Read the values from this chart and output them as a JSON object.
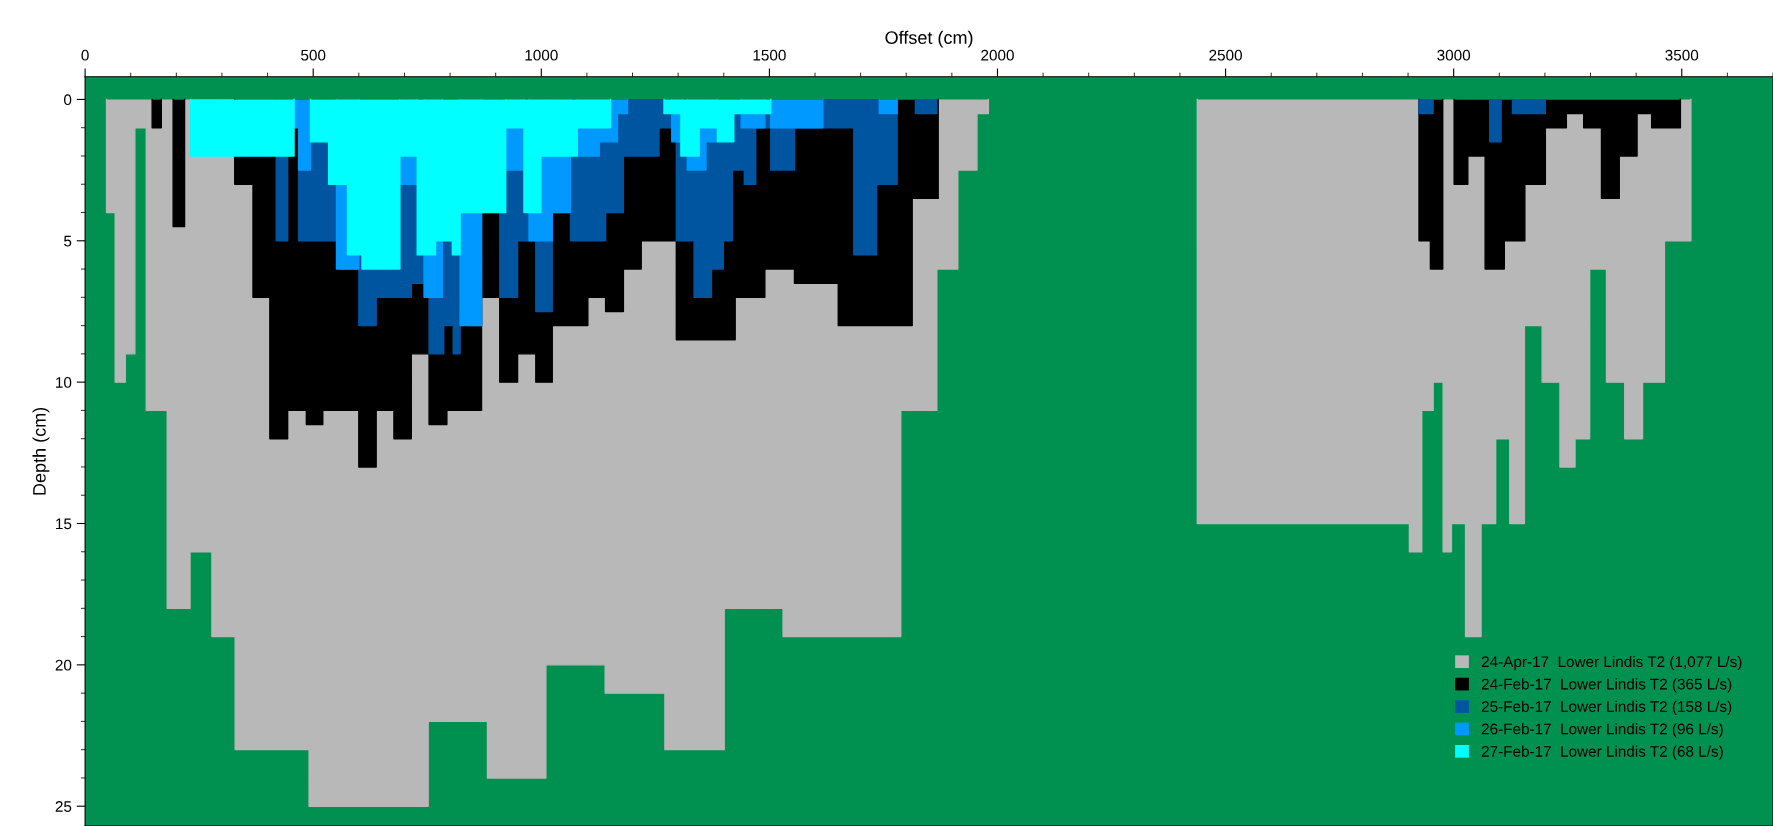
{
  "chart_data": {
    "type": "area",
    "xlabel": "Offset (cm)",
    "ylabel": "Depth (cm)",
    "xlim": [
      0,
      3700
    ],
    "xticks": [
      0,
      500,
      1000,
      1500,
      2000,
      2500,
      3000,
      3500
    ],
    "ylim": [
      25.7,
      -0.8
    ],
    "yticks": [
      0,
      5,
      10,
      15,
      20,
      25
    ],
    "grid": false,
    "legend": "bottom right",
    "series": [
      {
        "name": "24-Apr-17  Lower Lindis T2 (1,077 L/s)",
        "color": "#b8b8b8",
        "x": [
          47,
          47,
          66,
          66,
          88,
          88,
          109,
          109,
          134,
          134,
          180,
          180,
          230,
          230,
          278,
          278,
          329,
          329,
          491,
          491,
          752,
          752,
          882,
          882,
          1010,
          1010,
          1140,
          1140,
          1271,
          1271,
          1401,
          1401,
          1530,
          1530,
          1788,
          1788,
          1867,
          1867,
          1913,
          1913,
          1955,
          1955,
          1980,
          1980,
          2200,
          2438,
          2438,
          2903,
          2903,
          2930,
          2930,
          2955,
          2955,
          2977,
          2977,
          2995,
          2995,
          3026,
          3026,
          3060,
          3060,
          3092,
          3092,
          3123,
          3123,
          3155,
          3155,
          3194,
          3194,
          3233,
          3233,
          3266,
          3266,
          3298,
          3298,
          3335,
          3335,
          3375,
          3375,
          3414,
          3414,
          3462,
          3462,
          3520,
          3520
        ],
        "values": [
          0,
          4,
          4,
          10,
          10,
          9,
          9,
          1,
          1,
          11,
          11,
          18,
          18,
          16,
          16,
          19,
          19,
          23,
          23,
          25,
          25,
          22,
          22,
          24,
          24,
          20,
          20,
          21,
          21,
          23,
          23,
          18,
          18,
          19,
          19,
          11,
          11,
          6,
          6,
          2.5,
          2.5,
          0.5,
          0.5,
          0,
          null,
          0,
          15,
          15,
          16,
          16,
          11,
          11,
          10,
          10,
          16,
          16,
          15,
          15,
          19,
          19,
          15,
          15,
          12,
          12,
          15,
          15,
          8,
          8,
          10,
          10,
          13,
          13,
          12,
          12,
          6,
          6,
          10,
          10,
          12,
          12,
          10,
          10,
          5,
          5,
          0
        ]
      },
      {
        "name": "24-Feb-17  Lower Lindis T2 (365 L/s)",
        "color": "#000000",
        "x": [
          147,
          147,
          167,
          167,
          180,
          193,
          193,
          218,
          218,
          270,
          328,
          328,
          368,
          368,
          405,
          405,
          444,
          444,
          485,
          485,
          521,
          521,
          600,
          600,
          638,
          638,
          677,
          677,
          715,
          715,
          754,
          754,
          793,
          793,
          869,
          869,
          909,
          909,
          948,
          948,
          988,
          988,
          1024,
          1024,
          1102,
          1102,
          1141,
          1141,
          1180,
          1180,
          1219,
          1219,
          1296,
          1296,
          1425,
          1425,
          1490,
          1490,
          1555,
          1555,
          1651,
          1651,
          1813,
          1813,
          1870,
          1870,
          2400,
          2924,
          2924,
          2949,
          2949,
          2976,
          2976,
          2988,
          3001,
          3001,
          3031,
          3031,
          3069,
          3069,
          3111,
          3111,
          3156,
          3156,
          3201,
          3201,
          3247,
          3247,
          3285,
          3285,
          3324,
          3324,
          3363,
          3363,
          3402,
          3402,
          3434,
          3434,
          3497,
          3497
        ],
        "values": [
          0,
          1,
          1,
          0,
          null,
          0,
          4.5,
          4.5,
          0,
          null,
          0,
          3,
          3,
          7,
          7,
          12,
          12,
          11,
          11,
          11.5,
          11.5,
          11,
          11,
          13,
          13,
          11,
          11,
          12,
          12,
          9,
          9,
          11.5,
          11.5,
          11,
          11,
          7,
          7,
          10,
          10,
          9,
          9,
          10,
          10,
          8,
          8,
          7,
          7,
          7.5,
          7.5,
          6,
          6,
          5,
          5,
          8.5,
          8.5,
          7,
          7,
          6,
          6,
          6.5,
          6.5,
          8,
          8,
          3.5,
          3.5,
          0,
          null,
          0,
          5,
          5,
          6,
          6,
          0,
          null,
          0,
          3,
          3,
          2,
          2,
          6,
          6,
          5,
          5,
          3,
          3,
          1,
          1,
          0.5,
          0.5,
          1,
          1,
          3.5,
          3.5,
          2,
          2,
          0.5,
          0.5,
          1,
          1,
          0
        ]
      },
      {
        "name": "25-Feb-17  Lower Lindis T2 (158 L/s)",
        "color": "#0055a0",
        "x": [
          419,
          419,
          444,
          444,
          456,
          468,
          468,
          560,
          560,
          600,
          600,
          638,
          638,
          715,
          715,
          754,
          754,
          786,
          786,
          807,
          807,
          822,
          822,
          841,
          841,
          869,
          869,
          889,
          909,
          909,
          948,
          948,
          988,
          988,
          1024,
          1024,
          1044,
          1064,
          1064,
          1141,
          1141,
          1180,
          1180,
          1258,
          1258,
          1296,
          1296,
          1335,
          1335,
          1373,
          1373,
          1399,
          1399,
          1419,
          1419,
          1445,
          1445,
          1470,
          1470,
          1503,
          1503,
          1555,
          1555,
          1685,
          1685,
          1735,
          1735,
          1780,
          1780,
          1800,
          1820,
          1820,
          1867,
          1867,
          2400,
          2924,
          2924,
          2955,
          2955,
          3000,
          3079,
          3079,
          3104,
          3104,
          3116,
          3129,
          3129,
          3201,
          3201
        ],
        "values": [
          0,
          5,
          5,
          0,
          null,
          0,
          5,
          5,
          6,
          6,
          8,
          8,
          7,
          7,
          6.5,
          6.5,
          9,
          9,
          8,
          8,
          9,
          9,
          7.5,
          7.5,
          8,
          8,
          0,
          null,
          0,
          7,
          7,
          5,
          5,
          7.5,
          7.5,
          0,
          null,
          0,
          5,
          5,
          4,
          4,
          2,
          2,
          1,
          1,
          5,
          5,
          7,
          7,
          6,
          6,
          5,
          5,
          2.5,
          2.5,
          3,
          3,
          1,
          1,
          2.5,
          2.5,
          1,
          1,
          5.5,
          5.5,
          3,
          3,
          0,
          null,
          0,
          0.5,
          0.5,
          0,
          null,
          0,
          0.5,
          0.5,
          0,
          null,
          0,
          1.5,
          1.5,
          0,
          null,
          0,
          0.5,
          0.5,
          0
        ]
      },
      {
        "name": "26-Feb-17  Lower Lindis T2 (96 L/s)",
        "color": "#0099ff",
        "x": [
          458,
          458,
          468,
          468,
          494,
          494,
          520,
          551,
          551,
          600,
          600,
          645,
          690,
          690,
          728,
          728,
          735,
          743,
          743,
          783,
          783,
          800,
          822,
          822,
          869,
          869,
          900,
          922,
          922,
          962,
          962,
          968,
          973,
          973,
          1024,
          1024,
          1064,
          1064,
          1070,
          1079,
          1079,
          1127,
          1127,
          1167,
          1167,
          1189,
          1189,
          1240,
          1286,
          1286,
          1310,
          1310,
          1315,
          1320,
          1320,
          1361,
          1361,
          1386,
          1386,
          1410,
          1438,
          1438,
          1490,
          1490,
          1496,
          1503,
          1503,
          1617,
          1617,
          1680,
          1741,
          1741,
          1780,
          1780
        ],
        "values": [
          0,
          1,
          1,
          2.5,
          2.5,
          0,
          null,
          0,
          6,
          6,
          0,
          null,
          0,
          3,
          3,
          0,
          null,
          0,
          7,
          7,
          0,
          null,
          0,
          8,
          8,
          0,
          null,
          0,
          2.5,
          2.5,
          0,
          null,
          0,
          5,
          5,
          4,
          4,
          0,
          null,
          0,
          2,
          2,
          1.5,
          1.5,
          0.5,
          0.5,
          0,
          null,
          0,
          1.5,
          1.5,
          0,
          null,
          0,
          2.5,
          2.5,
          1.5,
          1.5,
          0,
          null,
          0,
          1,
          1,
          0,
          null,
          0,
          1,
          1,
          0,
          null,
          0,
          0.5,
          0.5,
          0
        ]
      },
      {
        "name": "27-Feb-17  Lower Lindis T2 (68 L/s)",
        "color": "#00ffff",
        "x": [
          231,
          231,
          458,
          458,
          476,
          494,
          494,
          534,
          534,
          575,
          575,
          607,
          607,
          690,
          690,
          728,
          728,
          768,
          768,
          805,
          805,
          822,
          822,
          922,
          922,
          962,
          962,
          999,
          999,
          1079,
          1079,
          1152,
          1152,
          1210,
          1269,
          1269,
          1306,
          1306,
          1346,
          1346,
          1386,
          1386,
          1422,
          1422,
          1503,
          1503
        ],
        "values": [
          0,
          2,
          2,
          0,
          null,
          0,
          1.5,
          1.5,
          3,
          3,
          5.5,
          5.5,
          6,
          6,
          2,
          2,
          5.5,
          5.5,
          5,
          5,
          5.5,
          5.5,
          4,
          4,
          1,
          1,
          4,
          4,
          2,
          2,
          1,
          1,
          0,
          null,
          0,
          0.5,
          0.5,
          2,
          2,
          1,
          1,
          1.5,
          1.5,
          0.5,
          0.5,
          0
        ]
      }
    ]
  }
}
